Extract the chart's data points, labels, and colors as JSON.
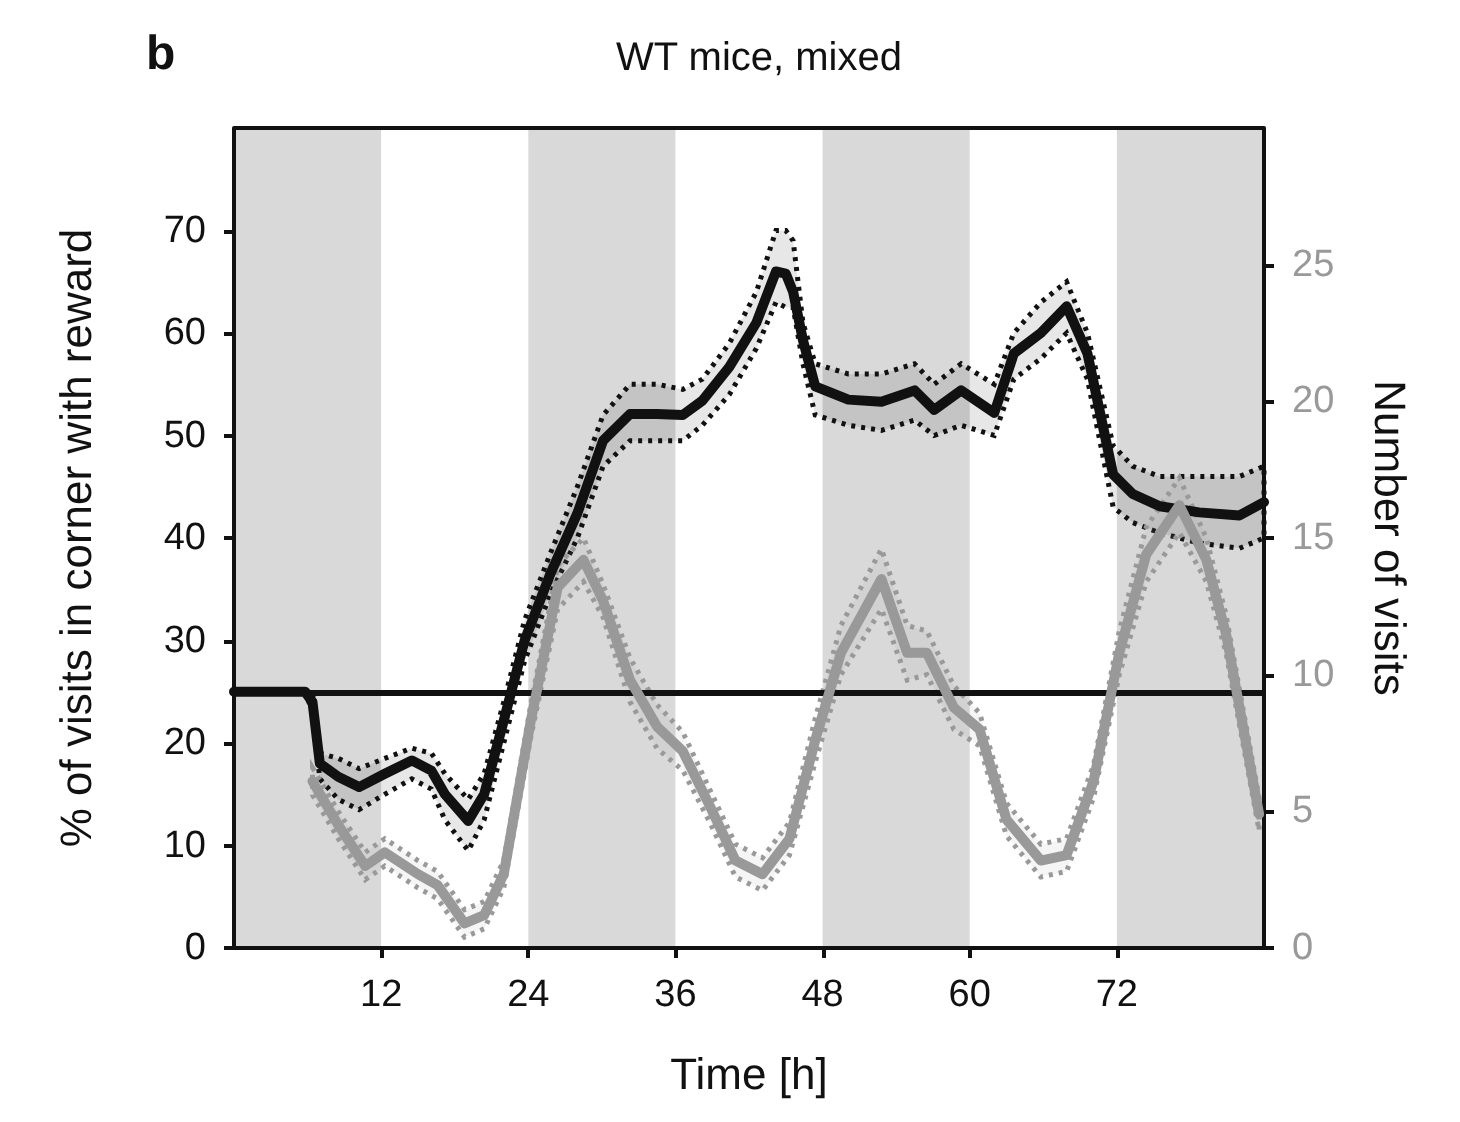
{
  "chart_data": {
    "type": "line",
    "title": "WT mice, mixed",
    "annotations": [
      "b"
    ],
    "xlabel": "Time [h]",
    "ylabel": "% of visits in corner with reward",
    "y2label": "Number of visits",
    "xlim": [
      0,
      84
    ],
    "xticks": [
      12,
      24,
      36,
      48,
      60,
      72
    ],
    "ylim": [
      0,
      80
    ],
    "yticks": [
      0,
      10,
      20,
      30,
      40,
      50,
      60,
      70
    ],
    "y2lim": [
      0,
      30
    ],
    "y2ticks": [
      0,
      5,
      10,
      15,
      20,
      25
    ],
    "grid": false,
    "line_style": "solid",
    "ref_lines": [
      {
        "axis": "y",
        "value": 25,
        "color": "#111111"
      }
    ],
    "bands": [
      {
        "axis": "x",
        "from": 0,
        "to": 12,
        "color": "#d9d9d9"
      },
      {
        "axis": "x",
        "from": 24,
        "to": 36,
        "color": "#d9d9d9"
      },
      {
        "axis": "x",
        "from": 48,
        "to": 60,
        "color": "#d9d9d9"
      },
      {
        "axis": "x",
        "from": 72,
        "to": 84,
        "color": "#d9d9d9"
      }
    ],
    "series": [
      {
        "color": "#111111",
        "x": [
          0,
          5.8,
          6.4,
          7.0,
          8.5,
          10.2,
          12.3,
          14.5,
          16.1,
          17.2,
          19.1,
          20.4,
          22.0,
          23.7,
          25.8,
          28.0,
          30.1,
          32.3,
          34.5,
          36.6,
          38.2,
          40.4,
          42.6,
          44.2,
          45.0,
          45.6,
          46.4,
          47.4,
          50.1,
          52.8,
          55.5,
          57.1,
          59.3,
          62,
          63.6,
          65.8,
          67.9,
          69.6,
          71.7,
          73.3,
          75.5,
          78.7,
          82,
          84
        ],
        "values": [
          25,
          25,
          24,
          18,
          16.7,
          15.7,
          17,
          18.3,
          17.3,
          15,
          12.4,
          15,
          22.2,
          30,
          36.5,
          42.4,
          49.5,
          52.1,
          52.1,
          52,
          53.4,
          56.7,
          61,
          66,
          65.8,
          64,
          59.3,
          54.8,
          53.5,
          53.3,
          54.4,
          52.5,
          54.4,
          52.2,
          58,
          60,
          62.6,
          58,
          46.2,
          44.3,
          43.1,
          42.5,
          42.2,
          43.5
        ],
        "upper": [
          25,
          25,
          25,
          19,
          18.5,
          17.5,
          18.5,
          19.5,
          19,
          17,
          14.5,
          17,
          24,
          32,
          38.5,
          45,
          52,
          55,
          55,
          54.5,
          55.5,
          59,
          64,
          70,
          70,
          69,
          61,
          57,
          56,
          56,
          57,
          55,
          57,
          55,
          60,
          63,
          65,
          60,
          49,
          47,
          46,
          46,
          46,
          47
        ],
        "lower": [
          25,
          25,
          23,
          16.5,
          14.5,
          13.5,
          15,
          16.5,
          15.5,
          12.5,
          9.5,
          12.5,
          20,
          28,
          34.5,
          40,
          47,
          49.5,
          49.5,
          49.5,
          51,
          54,
          58.5,
          63,
          62.5,
          62.5,
          57,
          52,
          51,
          50.5,
          51.5,
          50,
          51,
          50,
          55.5,
          57.5,
          60,
          55.5,
          43,
          41.5,
          40.5,
          39.5,
          39,
          40
        ]
      },
      {
        "color": "#999999",
        "axis": "y2",
        "x": [
          6.4,
          8.5,
          10.7,
          12.3,
          15.0,
          16.6,
          18.8,
          20.4,
          22.0,
          24.2,
          26.4,
          28.5,
          30.1,
          32.3,
          34.5,
          36.6,
          38.8,
          40.9,
          43.1,
          45.3,
          47.4,
          49.5,
          52.8,
          54.9,
          56.5,
          58.7,
          60.8,
          63,
          65.8,
          67.9,
          70.1,
          72.2,
          74.4,
          77.1,
          79.3,
          80.9,
          83.6
        ],
        "values": [
          6.1,
          4.5,
          3,
          3.5,
          2.7,
          2.3,
          0.9,
          1.2,
          2.7,
          8.3,
          13.2,
          14.2,
          12.7,
          9.8,
          8.1,
          7.2,
          5.2,
          3.2,
          2.7,
          4,
          7.6,
          10.8,
          13.5,
          10.8,
          10.8,
          8.8,
          8,
          4.7,
          3.2,
          3.4,
          6.1,
          10.8,
          14.4,
          16.2,
          14.2,
          11.5,
          4.9
        ],
        "upper": [
          6.6,
          5.0,
          3.5,
          4.0,
          3.2,
          2.8,
          1.4,
          1.7,
          3.2,
          8.9,
          14.0,
          15.0,
          13.3,
          10.6,
          8.9,
          7.9,
          5.8,
          3.8,
          3.3,
          4.6,
          8.4,
          11.8,
          14.6,
          11.8,
          11.6,
          9.6,
          8.6,
          5.3,
          3.8,
          4.0,
          6.7,
          11.6,
          15.4,
          17.2,
          15.0,
          12.2,
          5.5
        ],
        "lower": [
          5.6,
          4.0,
          2.5,
          3.0,
          2.2,
          1.8,
          0.4,
          0.7,
          2.2,
          7.7,
          12.4,
          13.4,
          12.1,
          9.0,
          7.3,
          6.5,
          4.6,
          2.6,
          2.1,
          3.4,
          6.8,
          10.0,
          12.4,
          9.8,
          10.0,
          8.0,
          7.4,
          4.1,
          2.6,
          2.8,
          5.5,
          10.0,
          13.4,
          15.2,
          13.4,
          10.8,
          4.3
        ]
      }
    ]
  }
}
